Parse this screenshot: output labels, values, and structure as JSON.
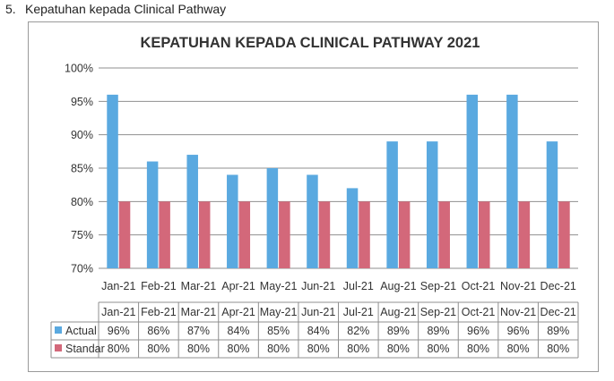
{
  "heading": {
    "number": "5.",
    "text": "Kepatuhan kepada Clinical Pathway"
  },
  "chart_data": {
    "type": "bar",
    "title": "KEPATUHAN KEPADA CLINICAL PATHWAY 2021",
    "categories": [
      "Jan-21",
      "Feb-21",
      "Mar-21",
      "Apr-21",
      "May-21",
      "Jun-21",
      "Jul-21",
      "Aug-21",
      "Sep-21",
      "Oct-21",
      "Nov-21",
      "Dec-21"
    ],
    "series": [
      {
        "name": "Actual",
        "color": "#5aa9e0",
        "values": [
          96,
          86,
          87,
          84,
          85,
          84,
          82,
          89,
          89,
          96,
          96,
          89
        ],
        "labels": [
          "96%",
          "86%",
          "87%",
          "84%",
          "85%",
          "84%",
          "82%",
          "89%",
          "89%",
          "96%",
          "96%",
          "89%"
        ]
      },
      {
        "name": "Standar",
        "color": "#d3687a",
        "values": [
          80,
          80,
          80,
          80,
          80,
          80,
          80,
          80,
          80,
          80,
          80,
          80
        ],
        "labels": [
          "80%",
          "80%",
          "80%",
          "80%",
          "80%",
          "80%",
          "80%",
          "80%",
          "80%",
          "80%",
          "80%",
          "80%"
        ]
      }
    ],
    "y_ticks": [
      "70%",
      "75%",
      "80%",
      "85%",
      "90%",
      "95%",
      "100%"
    ],
    "ylim": [
      70,
      100
    ],
    "grid": true,
    "legend": "data-table"
  }
}
